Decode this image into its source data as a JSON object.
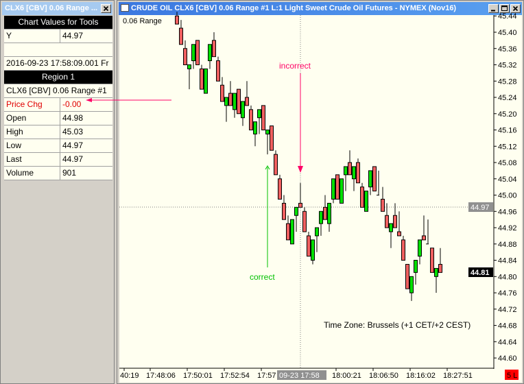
{
  "left_window": {
    "title": "CLX6 [CBV]  0.06 Range  ...",
    "close_icon": "close-icon",
    "header": "Chart Values for Tools",
    "y_label": "Y",
    "y_value": "44.97",
    "datetime": "2016-09-23  17:58:09.001 Fr",
    "region": "Region 1",
    "symbol_row": "CLX6 [CBV]  0.06 Range  #1",
    "rows": [
      {
        "label": "Price Chg",
        "value": "-0.00",
        "highlight": true
      },
      {
        "label": "Open",
        "value": "44.98"
      },
      {
        "label": "High",
        "value": "45.03"
      },
      {
        "label": "Low",
        "value": "44.97"
      },
      {
        "label": "Last",
        "value": "44.97"
      },
      {
        "label": "Volume",
        "value": "901"
      }
    ]
  },
  "chart_window": {
    "title": "CRUDE OIL  CLX6 [CBV]  0.06 Range  #1  L:1  Light Sweet Crude Oil Futures - NYMEX (Nov16)",
    "buttons": [
      "minimize-icon",
      "maximize-icon",
      "close-icon"
    ],
    "bar_type_label": "0.06 Range",
    "timezone": "Time Zone: Brussels (+1 CET/+2 CEST)",
    "annotation_incorrect": "incorrect",
    "annotation_correct": "correct",
    "crosshair_price": "44.97",
    "crosshair_time": "09-23  17:58",
    "last_price": "44.81",
    "status_badge": "5 L",
    "colors": {
      "background": "#fffff0",
      "up": "#00e000",
      "down": "#f06060",
      "incorrect": "#ff0066",
      "correct": "#00c000",
      "badge": "#ff0000"
    }
  },
  "chart_data": {
    "type": "candlestick",
    "ylim": [
      44.58,
      45.45
    ],
    "y_ticks": [
      "45.44",
      "45.40",
      "45.36",
      "45.32",
      "45.28",
      "45.24",
      "45.20",
      "45.16",
      "45.12",
      "45.08",
      "45.04",
      "45.00",
      "44.96",
      "44.92",
      "44.88",
      "44.84",
      "44.80",
      "44.76",
      "44.72",
      "44.68",
      "44.64",
      "44.60"
    ],
    "x_ticks": [
      "40:19",
      "17:48:06",
      "17:50:01",
      "17:52:54",
      "17:57",
      "18:00:21",
      "18:06:50",
      "18:16:02",
      "18:27:51"
    ],
    "ohlc": [
      [
        45.44,
        45.45,
        45.42,
        45.42
      ],
      [
        45.41,
        45.43,
        45.37,
        45.37
      ],
      [
        45.36,
        45.38,
        45.32,
        45.32
      ],
      [
        45.31,
        45.32,
        45.26,
        45.32
      ],
      [
        45.33,
        45.37,
        45.31,
        45.37
      ],
      [
        45.38,
        45.38,
        45.32,
        45.32
      ],
      [
        45.31,
        45.32,
        45.26,
        45.26
      ],
      [
        45.25,
        45.31,
        45.25,
        45.31
      ],
      [
        45.33,
        45.37,
        45.31,
        45.37
      ],
      [
        45.38,
        45.4,
        45.34,
        45.34
      ],
      [
        45.33,
        45.34,
        45.28,
        45.28
      ],
      [
        45.27,
        45.29,
        45.23,
        45.23
      ],
      [
        45.22,
        45.24,
        45.18,
        45.24
      ],
      [
        45.25,
        45.28,
        45.22,
        45.22
      ],
      [
        45.21,
        45.25,
        45.19,
        45.25
      ],
      [
        45.26,
        45.26,
        45.2,
        45.2
      ],
      [
        45.19,
        45.23,
        45.17,
        45.23
      ],
      [
        45.24,
        45.28,
        45.22,
        45.22
      ],
      [
        45.21,
        45.22,
        45.16,
        45.16
      ],
      [
        45.15,
        45.18,
        45.12,
        45.18
      ],
      [
        45.19,
        45.21,
        45.15,
        45.21
      ],
      [
        45.22,
        45.22,
        45.16,
        45.16
      ],
      [
        45.15,
        45.16,
        45.1,
        45.16
      ],
      [
        45.17,
        45.17,
        45.11,
        45.11
      ],
      [
        45.1,
        45.11,
        45.05,
        45.05
      ],
      [
        45.04,
        45.05,
        44.99,
        44.99
      ],
      [
        44.98,
        45.0,
        44.94,
        44.94
      ],
      [
        44.93,
        44.95,
        44.89,
        44.89
      ],
      [
        44.88,
        44.94,
        44.88,
        44.94
      ],
      [
        44.95,
        44.97,
        44.91,
        44.97
      ],
      [
        44.98,
        45.03,
        44.97,
        44.97
      ],
      [
        44.96,
        44.97,
        44.91,
        44.91
      ],
      [
        44.9,
        44.91,
        44.85,
        44.85
      ],
      [
        44.84,
        44.89,
        44.83,
        44.89
      ],
      [
        44.9,
        44.92,
        44.86,
        44.92
      ],
      [
        44.93,
        44.96,
        44.9,
        44.96
      ],
      [
        44.97,
        45.0,
        44.94,
        44.94
      ],
      [
        44.93,
        44.98,
        44.91,
        44.98
      ],
      [
        44.99,
        45.04,
        44.98,
        45.04
      ],
      [
        45.05,
        45.05,
        44.99,
        44.99
      ],
      [
        44.98,
        45.04,
        44.98,
        45.04
      ],
      [
        45.05,
        45.07,
        45.01,
        45.07
      ],
      [
        45.08,
        45.11,
        45.05,
        45.05
      ],
      [
        45.04,
        45.07,
        45.01,
        45.07
      ],
      [
        45.08,
        45.09,
        45.03,
        45.03
      ],
      [
        45.02,
        45.03,
        44.97,
        44.97
      ],
      [
        44.96,
        45.01,
        44.96,
        45.01
      ],
      [
        45.02,
        45.06,
        45.0,
        45.06
      ],
      [
        45.07,
        45.07,
        45.01,
        45.01
      ],
      [
        45.0,
        45.06,
        45.0,
        45.0
      ],
      [
        44.99,
        45.02,
        44.96,
        44.96
      ],
      [
        44.95,
        44.98,
        44.92,
        44.92
      ],
      [
        44.91,
        44.93,
        44.87,
        44.93
      ],
      [
        44.95,
        44.98,
        44.92,
        44.92
      ],
      [
        44.91,
        44.96,
        44.9,
        44.9
      ],
      [
        44.89,
        44.9,
        44.84,
        44.84
      ],
      [
        44.83,
        44.83,
        44.77,
        44.77
      ],
      [
        44.76,
        44.8,
        44.74,
        44.8
      ],
      [
        44.81,
        44.84,
        44.78,
        44.84
      ],
      [
        44.85,
        44.89,
        44.83,
        44.89
      ],
      [
        44.9,
        44.95,
        44.89,
        44.89
      ],
      [
        44.88,
        44.94,
        44.88,
        44.88
      ],
      [
        44.87,
        44.87,
        44.81,
        44.81
      ],
      [
        44.8,
        44.82,
        44.76,
        44.82
      ],
      [
        44.83,
        44.87,
        44.81,
        44.81
      ]
    ]
  }
}
